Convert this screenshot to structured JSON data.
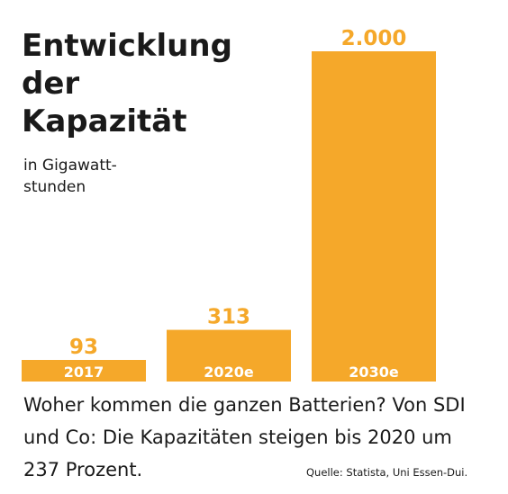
{
  "chart_data": {
    "type": "bar",
    "title": "Entwicklung der Kapazität",
    "subtitle": "in Gigawatt-stunden",
    "categories": [
      "2017",
      "2020e",
      "2030e"
    ],
    "values": [
      93,
      313,
      2000
    ],
    "value_labels": [
      "93",
      "313",
      "2.000"
    ],
    "bar_color": "#f5a82a",
    "grid": false
  },
  "title_lines": [
    "Entwicklung",
    "der",
    "Kapazität"
  ],
  "unit_lines": [
    "in Gigawatt-",
    "stunden"
  ],
  "caption": "Woher kommen die ganzen Batterien? Von SDI und Co: Die Kapazitäten steigen bis 2020 um 237 Prozent.",
  "source": "Quelle: Statista, Uni Essen-Dui."
}
